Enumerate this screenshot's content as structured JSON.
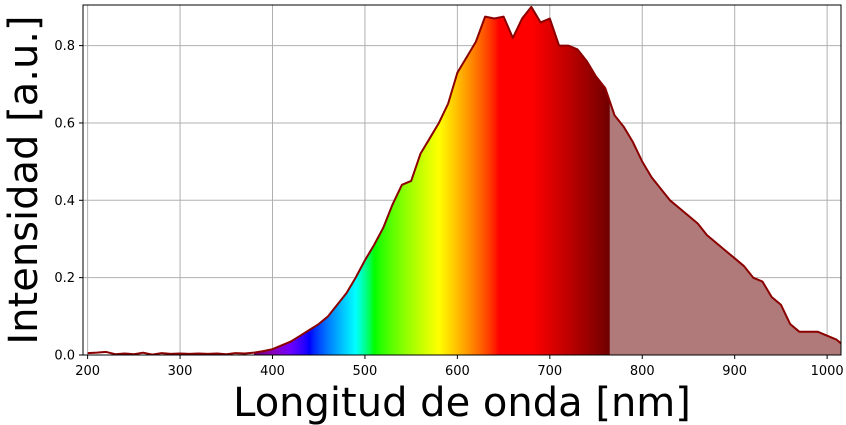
{
  "chart_data": {
    "type": "area",
    "title": "",
    "xlabel": "Longitud de onda [nm]",
    "ylabel": "Intensidad [a.u.]",
    "xlim": [
      195,
      1015
    ],
    "ylim": [
      0,
      0.905
    ],
    "grid": true,
    "xticks": [
      200,
      300,
      400,
      500,
      600,
      700,
      800,
      900,
      1000
    ],
    "yticks": [
      0.0,
      0.2,
      0.4,
      0.6,
      0.8
    ],
    "ytick_labels": [
      "0.0",
      "0.2",
      "0.4",
      "0.6",
      "0.8"
    ],
    "visible_spectrum_range": [
      380,
      765
    ],
    "colors": {
      "line": "#8b0000",
      "infrared_fill": "#b07a7a",
      "grid": "#b0b0b0"
    },
    "x": [
      200,
      210,
      220,
      230,
      240,
      250,
      260,
      270,
      280,
      290,
      300,
      310,
      320,
      330,
      340,
      350,
      360,
      370,
      380,
      390,
      400,
      410,
      420,
      430,
      440,
      450,
      460,
      470,
      480,
      490,
      500,
      510,
      520,
      530,
      540,
      550,
      560,
      570,
      580,
      590,
      600,
      610,
      620,
      630,
      640,
      650,
      660,
      670,
      680,
      690,
      700,
      710,
      720,
      730,
      740,
      750,
      760,
      770,
      780,
      790,
      800,
      810,
      820,
      830,
      840,
      850,
      860,
      870,
      880,
      890,
      900,
      910,
      920,
      930,
      940,
      950,
      960,
      970,
      980,
      990,
      1000,
      1010,
      1015
    ],
    "y": [
      0.005,
      0.006,
      0.008,
      0.002,
      0.004,
      0.002,
      0.006,
      0.001,
      0.005,
      0.003,
      0.004,
      0.003,
      0.004,
      0.003,
      0.004,
      0.002,
      0.005,
      0.004,
      0.006,
      0.01,
      0.015,
      0.025,
      0.035,
      0.05,
      0.065,
      0.08,
      0.1,
      0.13,
      0.16,
      0.2,
      0.245,
      0.285,
      0.33,
      0.39,
      0.44,
      0.45,
      0.52,
      0.56,
      0.6,
      0.65,
      0.73,
      0.77,
      0.81,
      0.875,
      0.87,
      0.875,
      0.82,
      0.87,
      0.9,
      0.86,
      0.87,
      0.8,
      0.8,
      0.79,
      0.76,
      0.72,
      0.69,
      0.62,
      0.59,
      0.55,
      0.5,
      0.46,
      0.43,
      0.4,
      0.38,
      0.36,
      0.34,
      0.31,
      0.29,
      0.27,
      0.25,
      0.23,
      0.2,
      0.19,
      0.15,
      0.13,
      0.08,
      0.06,
      0.06,
      0.06,
      0.05,
      0.04,
      0.03
    ]
  }
}
